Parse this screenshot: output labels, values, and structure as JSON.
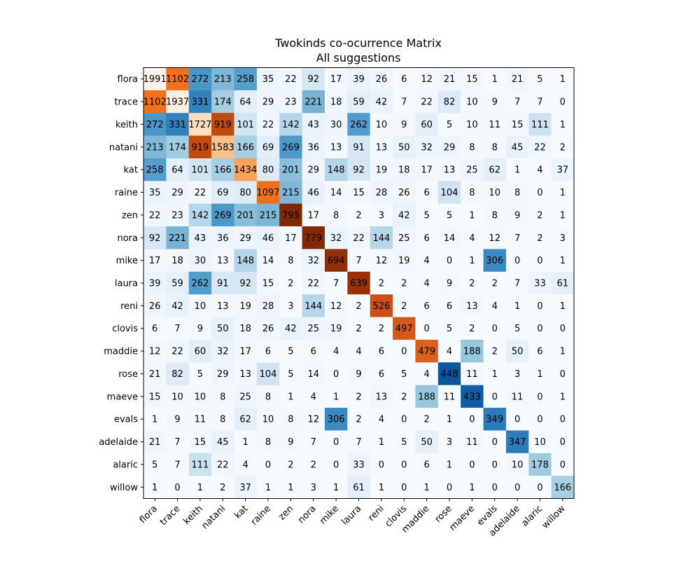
{
  "chart_data": {
    "type": "heatmap",
    "title": "Twokinds co-ocurrence Matrix",
    "subtitle": "All suggestions",
    "xlabel": "",
    "ylabel": "",
    "legend": "none",
    "grid": false,
    "colormap": "diverging blue (low/mid off-diagonal) to orange/brown (high, diagonal)",
    "labels": [
      "flora",
      "trace",
      "keith",
      "natani",
      "kat",
      "raine",
      "zen",
      "nora",
      "mike",
      "laura",
      "reni",
      "clovis",
      "maddie",
      "rose",
      "maeve",
      "evals",
      "adelaide",
      "alaric",
      "willow"
    ],
    "matrix": [
      [
        1991,
        1102,
        272,
        213,
        258,
        35,
        22,
        92,
        17,
        39,
        26,
        6,
        12,
        21,
        15,
        1,
        21,
        5,
        1
      ],
      [
        1102,
        1937,
        331,
        174,
        64,
        29,
        23,
        221,
        18,
        59,
        42,
        7,
        22,
        82,
        10,
        9,
        7,
        7,
        0
      ],
      [
        272,
        331,
        1727,
        919,
        101,
        22,
        142,
        43,
        30,
        262,
        10,
        9,
        60,
        5,
        10,
        11,
        15,
        111,
        1
      ],
      [
        213,
        174,
        919,
        1583,
        166,
        69,
        269,
        36,
        13,
        91,
        13,
        50,
        32,
        29,
        8,
        8,
        45,
        22,
        2
      ],
      [
        258,
        64,
        101,
        166,
        1434,
        80,
        201,
        29,
        148,
        92,
        19,
        18,
        17,
        13,
        25,
        62,
        1,
        4,
        37
      ],
      [
        35,
        29,
        22,
        69,
        80,
        1097,
        215,
        46,
        14,
        15,
        28,
        26,
        6,
        104,
        8,
        10,
        8,
        0,
        1
      ],
      [
        22,
        23,
        142,
        269,
        201,
        215,
        795,
        17,
        8,
        2,
        3,
        42,
        5,
        5,
        1,
        8,
        9,
        2,
        1
      ],
      [
        92,
        221,
        43,
        36,
        29,
        46,
        17,
        779,
        32,
        22,
        144,
        25,
        6,
        14,
        4,
        12,
        7,
        2,
        3
      ],
      [
        17,
        18,
        30,
        13,
        148,
        14,
        8,
        32,
        694,
        7,
        12,
        19,
        4,
        0,
        1,
        306,
        0,
        0,
        1
      ],
      [
        39,
        59,
        262,
        91,
        92,
        15,
        2,
        22,
        7,
        639,
        2,
        2,
        4,
        9,
        2,
        2,
        7,
        33,
        61
      ],
      [
        26,
        42,
        10,
        13,
        19,
        28,
        3,
        144,
        12,
        2,
        526,
        2,
        6,
        6,
        13,
        4,
        1,
        0,
        1
      ],
      [
        6,
        7,
        9,
        50,
        18,
        26,
        42,
        25,
        19,
        2,
        2,
        497,
        0,
        5,
        2,
        0,
        5,
        0,
        0
      ],
      [
        12,
        22,
        60,
        32,
        17,
        6,
        5,
        6,
        4,
        4,
        6,
        0,
        479,
        4,
        188,
        2,
        50,
        6,
        1
      ],
      [
        21,
        82,
        5,
        29,
        13,
        104,
        5,
        14,
        0,
        9,
        6,
        5,
        4,
        448,
        11,
        1,
        3,
        1,
        0
      ],
      [
        15,
        10,
        10,
        8,
        25,
        8,
        1,
        4,
        1,
        2,
        13,
        2,
        188,
        11,
        433,
        0,
        11,
        0,
        1
      ],
      [
        1,
        9,
        11,
        8,
        62,
        10,
        8,
        12,
        306,
        2,
        4,
        0,
        2,
        1,
        0,
        349,
        0,
        0,
        0
      ],
      [
        21,
        7,
        15,
        45,
        1,
        8,
        9,
        7,
        0,
        7,
        1,
        5,
        50,
        3,
        11,
        0,
        347,
        10,
        0
      ],
      [
        5,
        7,
        111,
        22,
        4,
        0,
        2,
        2,
        0,
        33,
        0,
        0,
        6,
        1,
        0,
        0,
        10,
        178,
        0
      ],
      [
        1,
        0,
        1,
        2,
        37,
        1,
        1,
        3,
        1,
        61,
        1,
        0,
        1,
        0,
        1,
        0,
        0,
        0,
        166
      ]
    ]
  }
}
